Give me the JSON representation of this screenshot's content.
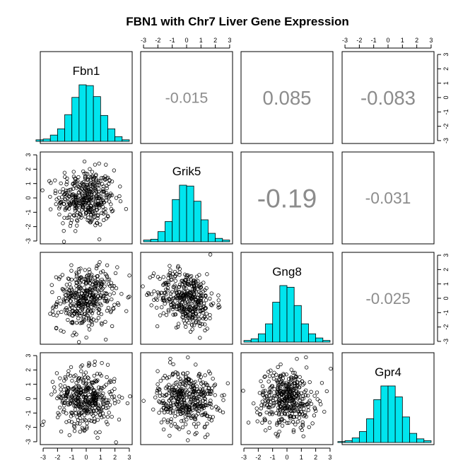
{
  "chart_data": {
    "type": "scatter-matrix",
    "title": "FBN1 with Chr7 Liver Gene Expression",
    "variables": [
      "Fbn1",
      "Grik5",
      "Gng8",
      "Gpr4"
    ],
    "axis_ticks": [
      -3,
      -2,
      -1,
      0,
      1,
      2,
      3
    ],
    "axis_range": [
      -3.2,
      3.2
    ],
    "correlations": [
      {
        "row": 0,
        "col": 1,
        "label": "-0.015",
        "value": -0.015
      },
      {
        "row": 0,
        "col": 2,
        "label": "0.085",
        "value": 0.085
      },
      {
        "row": 0,
        "col": 3,
        "label": "-0.083",
        "value": -0.083
      },
      {
        "row": 1,
        "col": 2,
        "label": "-0.19",
        "value": -0.19
      },
      {
        "row": 1,
        "col": 3,
        "label": "-0.031",
        "value": -0.031
      },
      {
        "row": 2,
        "col": 3,
        "label": "-0.025",
        "value": -0.025
      }
    ],
    "histograms": [
      {
        "variable": "Fbn1",
        "bins": [
          -3.5,
          -3,
          -2.5,
          -2,
          -1.5,
          -1,
          -0.5,
          0,
          0.5,
          1,
          1.5,
          2,
          2.5,
          3
        ],
        "counts": [
          2,
          3,
          8,
          16,
          34,
          56,
          72,
          71,
          57,
          33,
          16,
          6,
          2
        ]
      },
      {
        "variable": "Grik5",
        "bins": [
          -3,
          -2.5,
          -2,
          -1.5,
          -1,
          -0.5,
          0,
          0.5,
          1,
          1.5,
          2,
          2.5,
          3
        ],
        "counts": [
          2,
          3,
          12,
          24,
          50,
          67,
          66,
          48,
          26,
          10,
          4,
          2
        ]
      },
      {
        "variable": "Gng8",
        "bins": [
          -3,
          -2.5,
          -2,
          -1.5,
          -1,
          -0.5,
          0,
          0.5,
          1,
          1.5,
          2,
          2.5,
          3
        ],
        "counts": [
          2,
          4,
          10,
          22,
          48,
          68,
          66,
          44,
          22,
          10,
          5,
          2
        ]
      },
      {
        "variable": "Gpr4",
        "bins": [
          -3.5,
          -3,
          -2.5,
          -2,
          -1.5,
          -1,
          -0.5,
          0,
          0.5,
          1,
          1.5,
          2,
          2.5,
          3
        ],
        "counts": [
          1,
          2,
          5,
          12,
          26,
          47,
          62,
          62,
          50,
          28,
          10,
          4,
          2
        ]
      }
    ],
    "scatter_points_per_panel": 400,
    "hist_color": "#00e5ee",
    "corr_color": "#8c8c8c"
  }
}
